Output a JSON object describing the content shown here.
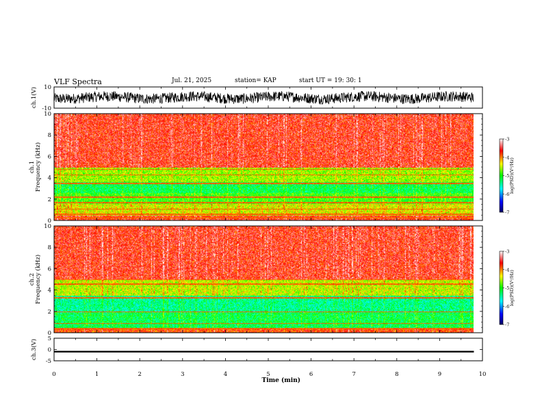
{
  "header": {
    "title": "VLF Spectra",
    "date": "Jul. 21, 2025",
    "station": "station= KAP",
    "start": "start  UT =   19: 30: 1"
  },
  "chart_data": {
    "type": "heatmap",
    "title": "VLF Spectra",
    "xlabel": "Time (min)",
    "xlim": [
      0,
      10
    ],
    "x_ticks": [
      "0",
      "1",
      "2",
      "3",
      "4",
      "5",
      "6",
      "7",
      "8",
      "9",
      "10"
    ],
    "panels": [
      {
        "id": "ch1-waveform",
        "kind": "line",
        "ylabel": "ch.1(V)",
        "ylim": [
          -10,
          10
        ],
        "y_ticks": [
          "10",
          "-10"
        ],
        "series": "noise waveform, roughly -6 to 6 V",
        "data_xlim": [
          0,
          9.8
        ]
      },
      {
        "id": "ch1-spectrogram",
        "kind": "heatmap",
        "ylabel": "ch.1 Frequency (kHz)",
        "ylim": [
          0,
          10
        ],
        "y_ticks": [
          "0",
          "2",
          "4",
          "6",
          "8",
          "10"
        ],
        "data_xlim": [
          0,
          9.8
        ],
        "bands_khz": [
          {
            "from": 0,
            "to": 0.5,
            "level": -3.6
          },
          {
            "from": 0.5,
            "to": 1.6,
            "level": -4.4
          },
          {
            "from": 1.6,
            "to": 2.6,
            "level": -4.9
          },
          {
            "from": 2.6,
            "to": 3.6,
            "level": -5.2
          },
          {
            "from": 3.6,
            "to": 5.0,
            "level": -4.6
          },
          {
            "from": 5.0,
            "to": 10,
            "level": -3.6
          }
        ],
        "lines_khz": [
          0.3,
          0.6,
          1.1,
          1.7,
          2.2,
          3.5,
          4.3,
          4.8
        ]
      },
      {
        "id": "ch2-spectrogram",
        "kind": "heatmap",
        "ylabel": "ch.2 Frequency (kHz)",
        "ylim": [
          0,
          10
        ],
        "y_ticks": [
          "0",
          "2",
          "4",
          "6",
          "8",
          "10"
        ],
        "data_xlim": [
          0,
          9.8
        ],
        "bands_khz": [
          {
            "from": 0,
            "to": 0.5,
            "level": -3.8
          },
          {
            "from": 0.5,
            "to": 2.0,
            "level": -5.2
          },
          {
            "from": 2.0,
            "to": 3.5,
            "level": -5.4
          },
          {
            "from": 3.5,
            "to": 5.0,
            "level": -4.5
          },
          {
            "from": 5.0,
            "to": 10,
            "level": -3.6
          }
        ],
        "lines_khz": [
          0.4,
          0.9,
          2.0,
          3.3,
          4.6,
          5.0
        ]
      },
      {
        "id": "ch3-waveform",
        "kind": "line",
        "ylabel": "ch.3(V)",
        "ylim": [
          -5,
          5
        ],
        "y_ticks": [
          "5",
          "0",
          "-5"
        ],
        "series": "thick band, about -1.3 to -0.6 V",
        "band_v": [
          -1.3,
          -0.6
        ],
        "data_xlim": [
          0,
          9.8
        ]
      }
    ],
    "colorbar": {
      "label": "log(PSD)(V²/Hz)",
      "range": [
        -7,
        -3
      ],
      "ticks": [
        "-3",
        "-4",
        "-5",
        "-6",
        "-7"
      ],
      "colormap": [
        "#000060",
        "#0000ff",
        "#00ffff",
        "#00ff00",
        "#ffff00",
        "#ff0000",
        "#ffffff"
      ]
    }
  }
}
